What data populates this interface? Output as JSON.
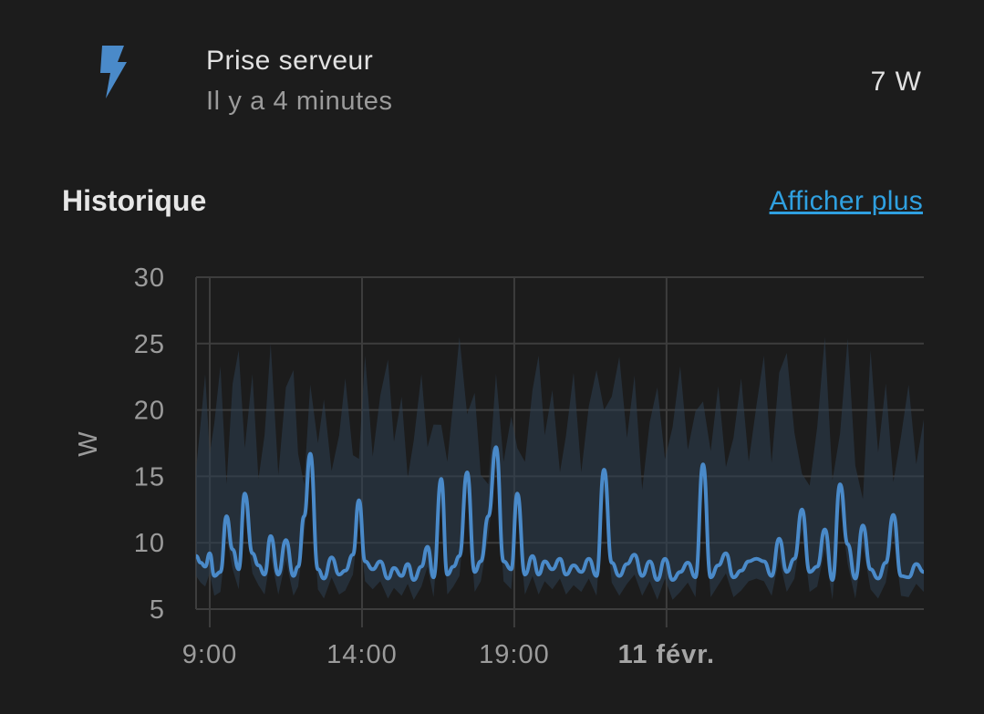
{
  "entity": {
    "name": "Prise serveur",
    "last_changed": "Il y a 4 minutes",
    "value": "7 W",
    "icon": "flash-icon",
    "icon_color": "#4a8ac9"
  },
  "history": {
    "title": "Historique",
    "show_more": "Afficher plus"
  },
  "chart_data": {
    "type": "line",
    "ylabel": "W",
    "ylim": [
      5,
      30
    ],
    "yticks": [
      5,
      10,
      15,
      20,
      25,
      30
    ],
    "xticks": [
      {
        "label": "9:00",
        "hour": 9,
        "bold": false
      },
      {
        "label": "14:00",
        "hour": 14,
        "bold": false
      },
      {
        "label": "19:00",
        "hour": 19,
        "bold": false
      },
      {
        "label": "11 févr.",
        "hour": 24,
        "bold": true
      }
    ],
    "x_range_hours": [
      8.55,
      32.45
    ],
    "grid": true,
    "line_color": "#4a8ac9",
    "band_color": "#2e3f52",
    "series": [
      {
        "values_hours": [
          8.55,
          8.7,
          8.85,
          9.0,
          9.15,
          9.35,
          9.55,
          9.75,
          9.95,
          10.15,
          10.4,
          10.6,
          10.8,
          11.0,
          11.25,
          11.5,
          11.75,
          11.9,
          12.1,
          12.3,
          12.55,
          12.75,
          13.0,
          13.25,
          13.45,
          13.7,
          13.9,
          14.1,
          14.35,
          14.6,
          14.85,
          15.05,
          15.3,
          15.5,
          15.7,
          15.95,
          16.15,
          16.35,
          16.6,
          16.8,
          17.0,
          17.2,
          17.45,
          17.7,
          17.9,
          18.15,
          18.4,
          18.65,
          18.9,
          19.1,
          19.35,
          19.6,
          19.8,
          20.0,
          20.25,
          20.5,
          20.7,
          20.95,
          21.2,
          21.45,
          21.7,
          21.95,
          22.2,
          22.45,
          22.7,
          22.95,
          23.2,
          23.45,
          23.7,
          23.95,
          24.2,
          24.45,
          24.7,
          24.95,
          25.2,
          25.45,
          25.7,
          25.95,
          26.2,
          26.45,
          26.7,
          26.95,
          27.2,
          27.45,
          27.7,
          27.95,
          28.2,
          28.45,
          28.7,
          28.95,
          29.2,
          29.45,
          29.7,
          29.95,
          30.2,
          30.45,
          30.7,
          30.95,
          31.2,
          31.45,
          31.7,
          31.95,
          32.2,
          32.45
        ],
        "values": [
          9.0,
          8.5,
          8.2,
          9.2,
          7.5,
          7.8,
          12.0,
          9.5,
          8.0,
          13.7,
          9.2,
          8.3,
          7.6,
          10.5,
          7.6,
          10.2,
          7.5,
          8.2,
          12.0,
          16.7,
          8.0,
          7.3,
          8.9,
          7.6,
          7.9,
          9.1,
          13.2,
          8.6,
          8.0,
          8.6,
          7.3,
          8.1,
          7.5,
          8.4,
          7.2,
          8.2,
          9.7,
          7.4,
          14.8,
          7.6,
          8.2,
          9.0,
          15.3,
          7.8,
          8.6,
          12.0,
          17.2,
          8.6,
          8.0,
          13.7,
          7.6,
          9.0,
          7.6,
          8.6,
          8.0,
          8.8,
          7.6,
          8.3,
          7.8,
          8.8,
          7.5,
          15.5,
          8.5,
          7.5,
          8.4,
          9.1,
          7.5,
          8.6,
          7.2,
          8.8,
          7.2,
          7.8,
          8.5,
          7.4,
          15.9,
          7.4,
          8.3,
          9.2,
          7.4,
          7.9,
          8.6,
          8.8,
          8.6,
          7.5,
          10.3,
          7.8,
          8.8,
          12.5,
          7.8,
          8.2,
          11.0,
          7.2,
          14.4,
          9.9,
          7.3,
          11.3,
          8.0,
          7.3,
          8.5,
          12.1,
          7.5,
          7.4,
          8.4,
          7.8
        ]
      }
    ]
  }
}
